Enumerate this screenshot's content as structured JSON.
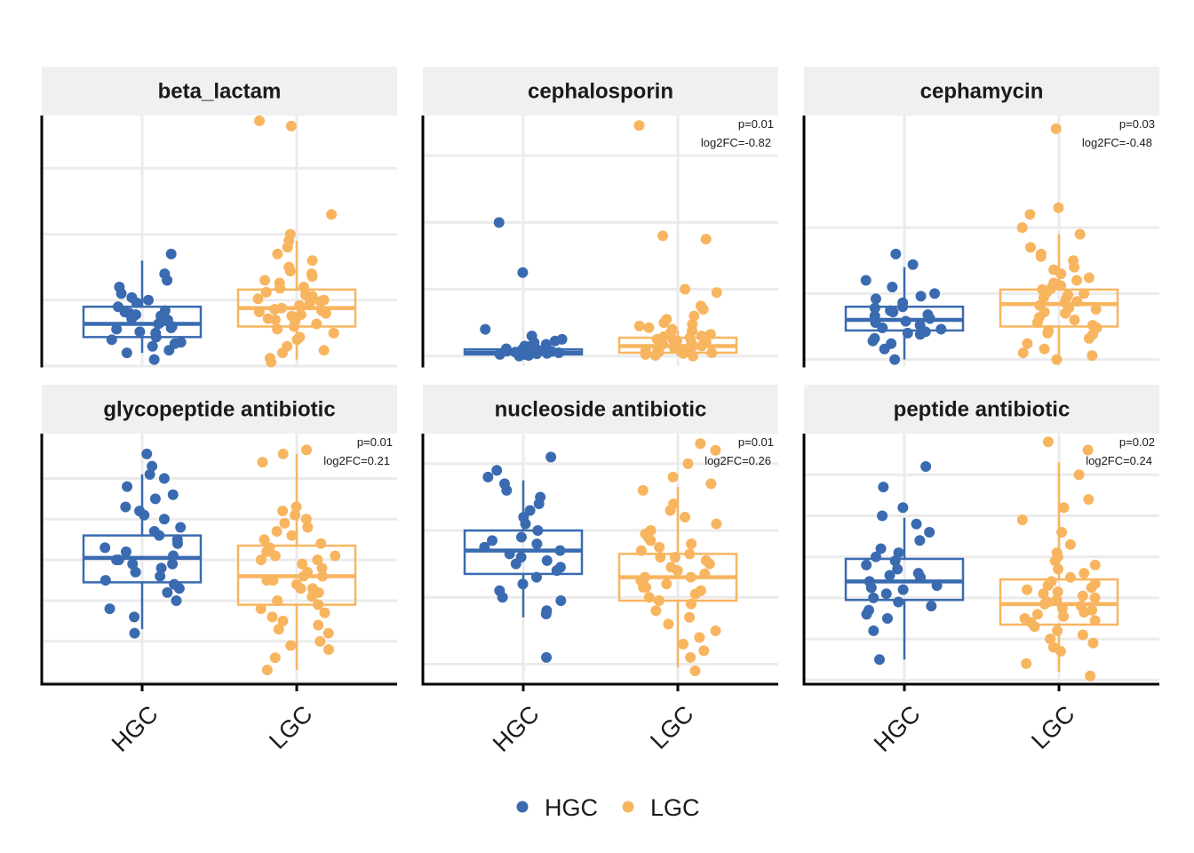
{
  "colors": {
    "HGC": "#3a6bb0",
    "LGC": "#f8b55f",
    "strip_bg": "#f0f0f0",
    "grid": "#ebebeb",
    "axis": "#000000"
  },
  "legend": {
    "position": "bottom",
    "items": [
      {
        "label": "HGC",
        "color": "#3a6bb0"
      },
      {
        "label": "LGC",
        "color": "#f8b55f"
      }
    ]
  },
  "chart_data": {
    "type": "box-jitter",
    "layout": {
      "rows": 2,
      "cols": 3
    },
    "categories": [
      "HGC",
      "LGC"
    ],
    "y_axis_labels_visible": false,
    "grid": true,
    "legend_position": "bottom",
    "panels": [
      {
        "title": "beta_lactam",
        "annotation": {
          "p": "",
          "fc": ""
        },
        "ylim": [
          0,
          19
        ],
        "grid_y": [
          0,
          5,
          10,
          15
        ],
        "boxes": {
          "HGC": {
            "min": 1.0,
            "q1": 2.2,
            "median": 3.2,
            "q3": 4.5,
            "max": 8.0
          },
          "LGC": {
            "min": 0.5,
            "q1": 3.0,
            "median": 4.4,
            "q3": 5.8,
            "max": 9.5
          }
        },
        "points": {
          "HGC": [
            0.5,
            1.0,
            1.5,
            1.8,
            2.2,
            2.5,
            2.8,
            3.0,
            3.2,
            3.5,
            3.8,
            4.0,
            4.2,
            4.5,
            5.0,
            5.5,
            6.0,
            7.0,
            8.5,
            1.2,
            2.0,
            2.6,
            3.3,
            3.6,
            4.1,
            5.2,
            1.7,
            2.9,
            3.9,
            4.8,
            6.5
          ],
          "LGC": [
            0.3,
            0.6,
            1.0,
            1.5,
            2.0,
            2.5,
            3.0,
            3.2,
            3.5,
            3.8,
            4.0,
            4.2,
            4.4,
            4.6,
            5.0,
            5.3,
            5.6,
            6.0,
            6.5,
            7.0,
            7.5,
            8.0,
            8.5,
            9.0,
            9.5,
            10.0,
            11.5,
            18.2,
            18.8,
            2.8,
            3.6,
            4.8,
            5.1,
            5.9,
            6.3,
            7.2,
            4.3,
            4.9,
            3.4,
            2.2,
            1.2,
            5.4,
            6.8,
            4.1,
            3.9
          ]
        }
      },
      {
        "title": "cephalosporin",
        "annotation": {
          "p": "p=0.01",
          "fc": "log2FC=-0.82"
        },
        "ylim": [
          -0.3,
          7.2
        ],
        "grid_y": [
          0,
          2,
          4,
          6
        ],
        "boxes": {
          "HGC": {
            "min": 0.0,
            "q1": 0.05,
            "median": 0.1,
            "q3": 0.2,
            "max": 0.3
          },
          "LGC": {
            "min": 0.0,
            "q1": 0.1,
            "median": 0.3,
            "q3": 0.55,
            "max": 0.75
          }
        },
        "points": {
          "HGC": [
            0.0,
            0.05,
            0.1,
            0.15,
            0.2,
            0.1,
            0.05,
            0.3,
            0.45,
            0.6,
            0.8,
            0.4,
            0.25,
            0.12,
            0.08,
            0.18,
            0.22,
            0.35,
            0.5,
            2.5,
            4.0,
            0.02,
            0.07,
            0.14,
            0.28
          ],
          "LGC": [
            0.0,
            0.05,
            0.1,
            0.15,
            0.2,
            0.25,
            0.3,
            0.35,
            0.4,
            0.5,
            0.6,
            0.7,
            0.8,
            0.9,
            1.0,
            1.2,
            1.4,
            1.5,
            1.9,
            2.0,
            3.5,
            3.6,
            6.9,
            0.12,
            0.18,
            0.22,
            0.28,
            0.33,
            0.45,
            0.55,
            0.65,
            0.75,
            0.85,
            0.08,
            0.02,
            0.38,
            0.48,
            0.58,
            0.95,
            1.1
          ]
        }
      },
      {
        "title": "cephamycin",
        "annotation": {
          "p": "p=0.03",
          "fc": "log2FC=-0.48"
        },
        "ylim": [
          -0.5,
          18.5
        ],
        "grid_y": [
          0,
          5,
          10
        ],
        "boxes": {
          "HGC": {
            "min": 0.0,
            "q1": 2.2,
            "median": 3.0,
            "q3": 4.0,
            "max": 7.0
          },
          "LGC": {
            "min": 0.0,
            "q1": 2.5,
            "median": 4.2,
            "q3": 5.3,
            "max": 9.5
          }
        },
        "points": {
          "HGC": [
            0.0,
            0.8,
            1.2,
            1.6,
            2.0,
            2.3,
            2.6,
            2.9,
            3.1,
            3.4,
            3.7,
            4.0,
            4.3,
            4.6,
            5.0,
            5.5,
            6.0,
            7.2,
            8.0,
            1.4,
            2.8,
            3.3,
            3.9,
            2.1,
            4.8,
            1.9,
            3.6,
            2.4
          ],
          "LGC": [
            0.0,
            0.3,
            0.8,
            1.2,
            1.6,
            2.0,
            2.4,
            2.8,
            3.2,
            3.5,
            3.8,
            4.1,
            4.4,
            4.7,
            5.0,
            5.3,
            5.6,
            6.0,
            6.5,
            7.0,
            7.5,
            8.0,
            8.5,
            9.5,
            10.0,
            11.0,
            11.5,
            17.5,
            2.2,
            3.0,
            3.9,
            4.3,
            5.1,
            5.8,
            6.8,
            4.6,
            3.6,
            1.9,
            2.6,
            4.9,
            5.4,
            6.2,
            7.8,
            0.5
          ]
        }
      },
      {
        "title": "glycopeptide antibiotic",
        "annotation": {
          "p": "p=0.01",
          "fc": "log2FC=0.21"
        },
        "ylim": [
          1.95,
          8.1
        ],
        "grid_y": [
          2,
          3,
          4,
          5,
          6,
          7
        ],
        "boxes": {
          "HGC": {
            "min": 3.3,
            "q1": 4.45,
            "median": 5.05,
            "q3": 5.6,
            "max": 7.1
          },
          "LGC": {
            "min": 2.3,
            "q1": 3.9,
            "median": 4.6,
            "q3": 5.35,
            "max": 7.6
          }
        },
        "points": {
          "HGC": [
            3.2,
            3.6,
            4.0,
            4.3,
            4.5,
            4.7,
            4.9,
            5.0,
            5.1,
            5.2,
            5.4,
            5.6,
            5.8,
            6.0,
            6.2,
            6.5,
            6.6,
            6.8,
            7.0,
            7.1,
            7.3,
            7.6,
            3.8,
            4.4,
            4.8,
            5.3,
            5.7,
            6.3,
            4.2,
            4.6,
            5.5,
            6.1,
            4.9,
            5.0
          ],
          "LGC": [
            2.3,
            2.6,
            2.8,
            3.0,
            3.3,
            3.5,
            3.7,
            3.9,
            4.1,
            4.3,
            4.5,
            4.6,
            4.8,
            5.0,
            5.1,
            5.3,
            5.5,
            5.7,
            5.9,
            6.1,
            6.3,
            7.4,
            7.6,
            7.7,
            3.2,
            3.6,
            3.8,
            4.0,
            4.2,
            4.4,
            4.7,
            4.9,
            5.2,
            5.4,
            5.6,
            5.8,
            6.0,
            6.2,
            4.5,
            4.6,
            4.3,
            3.4,
            2.9,
            5.0,
            5.1
          ]
        }
      },
      {
        "title": "nucleoside antibiotic",
        "annotation": {
          "p": "p=0.01",
          "fc": "log2FC=0.26"
        },
        "ylim": [
          1.7,
          5.45
        ],
        "grid_y": [
          2,
          3,
          4,
          5
        ],
        "boxes": {
          "HGC": {
            "min": 2.7,
            "q1": 3.35,
            "median": 3.7,
            "q3": 4.0,
            "max": 4.75
          },
          "LGC": {
            "min": 1.95,
            "q1": 2.95,
            "median": 3.3,
            "q3": 3.65,
            "max": 4.65
          }
        },
        "points": {
          "HGC": [
            2.1,
            2.8,
            3.0,
            3.1,
            3.3,
            3.4,
            3.5,
            3.6,
            3.7,
            3.8,
            3.9,
            4.0,
            4.1,
            4.2,
            4.4,
            4.5,
            4.6,
            4.7,
            4.8,
            4.9,
            5.1,
            3.2,
            3.65,
            3.75,
            3.85,
            2.95,
            3.55,
            4.3,
            3.45,
            2.75
          ],
          "LGC": [
            1.9,
            2.2,
            2.5,
            2.7,
            2.9,
            3.0,
            3.1,
            3.2,
            3.3,
            3.4,
            3.5,
            3.6,
            3.7,
            3.8,
            3.9,
            4.0,
            4.1,
            4.3,
            4.4,
            4.6,
            4.7,
            4.8,
            5.0,
            5.2,
            5.3,
            2.4,
            2.6,
            2.8,
            3.05,
            3.15,
            3.25,
            3.35,
            3.45,
            3.55,
            3.65,
            3.75,
            3.85,
            3.95,
            4.2,
            2.3,
            2.1,
            3.3,
            3.6,
            2.95,
            3.15
          ]
        }
      },
      {
        "title": "peptide antibiotic",
        "annotation": {
          "p": "p=0.02",
          "fc": "log2FC=0.24"
        },
        "ylim": [
          1.9,
          8.0
        ],
        "grid_y": [
          2,
          3,
          4,
          5,
          6,
          7
        ],
        "boxes": {
          "HGC": {
            "min": 2.5,
            "q1": 3.95,
            "median": 4.4,
            "q3": 4.95,
            "max": 5.95
          },
          "LGC": {
            "min": 2.2,
            "q1": 3.35,
            "median": 3.85,
            "q3": 4.45,
            "max": 7.3
          }
        },
        "points": {
          "HGC": [
            2.5,
            3.2,
            3.5,
            3.8,
            4.0,
            4.2,
            4.3,
            4.4,
            4.5,
            4.6,
            4.7,
            4.8,
            5.0,
            5.2,
            5.4,
            5.6,
            5.8,
            6.0,
            6.2,
            6.7,
            7.2,
            3.6,
            4.1,
            4.55,
            4.9,
            3.9,
            5.1,
            4.25,
            3.7
          ],
          "LGC": [
            2.1,
            2.4,
            2.7,
            2.9,
            3.1,
            3.3,
            3.5,
            3.6,
            3.7,
            3.8,
            3.9,
            4.0,
            4.1,
            4.2,
            4.3,
            4.5,
            4.7,
            4.9,
            5.1,
            5.3,
            5.6,
            5.9,
            6.2,
            6.4,
            7.0,
            7.6,
            7.8,
            3.2,
            3.4,
            3.75,
            3.85,
            3.95,
            4.05,
            4.15,
            4.4,
            4.6,
            4.8,
            5.0,
            3.0,
            2.8,
            3.65,
            3.55,
            4.25,
            4.35,
            3.45
          ]
        }
      }
    ]
  }
}
